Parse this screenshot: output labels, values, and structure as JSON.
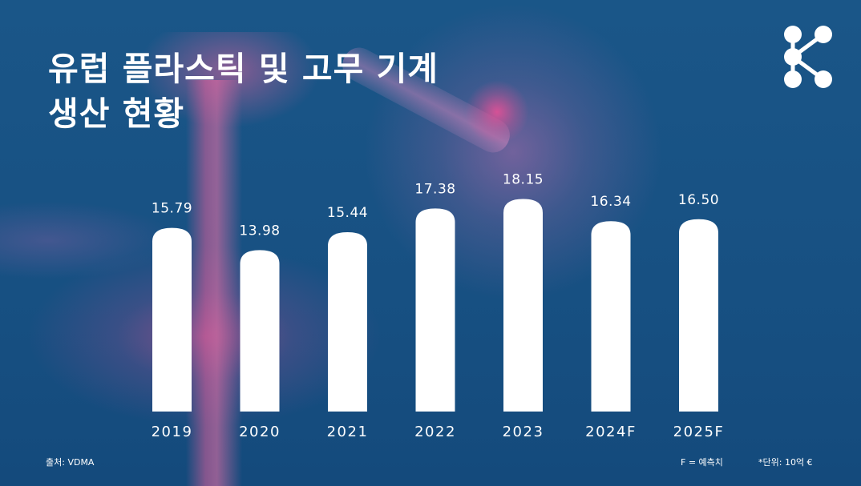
{
  "title": {
    "line1": "유럽 플라스틱 및 고무 기계",
    "line2": "생산 현황"
  },
  "logo_icon": "network-nodes-icon",
  "colors": {
    "background": "#175082",
    "bar": "#ffffff",
    "accent_pink": "#e0609c",
    "text": "#ffffff"
  },
  "chart_data": {
    "type": "bar",
    "categories": [
      "2019",
      "2020",
      "2021",
      "2022",
      "2023",
      "2024F",
      "2025F"
    ],
    "values": [
      15.79,
      13.98,
      15.44,
      17.38,
      18.15,
      16.34,
      16.5
    ],
    "value_labels": [
      "15.79",
      "13.98",
      "15.44",
      "17.38",
      "18.15",
      "16.34",
      "16.50"
    ],
    "title": "유럽 플라스틱 및 고무 기계 생산 현황",
    "unit": "*단위: 10억 €",
    "grid": false,
    "axes_visible": false
  },
  "footer": {
    "source": "출처: VDMA",
    "forecast_note": "F = 예측치",
    "unit_note": "*단위: 10억 €"
  }
}
